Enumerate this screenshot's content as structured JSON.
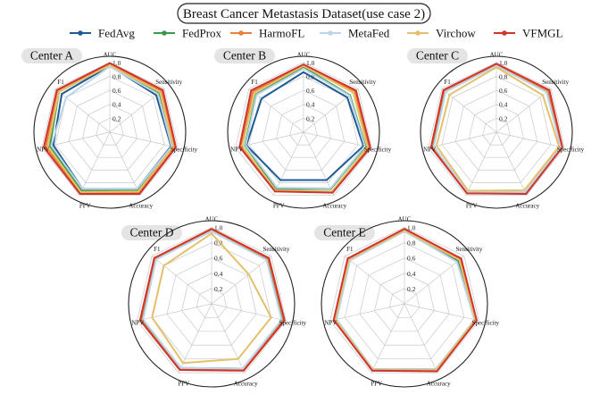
{
  "chart_data": {
    "type": "radar",
    "title": "Breast Cancer Metastasis Dataset(use case 2)",
    "axes": [
      "AUC",
      "Sensitivity",
      "Specificity",
      "Accuracy",
      "PPV",
      "NPV",
      "F1"
    ],
    "rlim": [
      0,
      1.0
    ],
    "radial_ticks": [
      "0.2",
      "0.4",
      "0.6",
      "0.8",
      "1.0"
    ],
    "radial_tick_values": [
      0.2,
      0.4,
      0.6,
      0.8,
      1.0
    ],
    "grid": true,
    "legend_position": "top",
    "series_meta": [
      {
        "name": "FedAvg",
        "color": "#1f5b94"
      },
      {
        "name": "FedProx",
        "color": "#3a9a48"
      },
      {
        "name": "HarmoFL",
        "color": "#e8823a"
      },
      {
        "name": "MetaFed",
        "color": "#bcd5ea"
      },
      {
        "name": "Virchow",
        "color": "#e3c06c"
      },
      {
        "name": "VFMGL",
        "color": "#d0342c"
      }
    ],
    "charts": [
      {
        "panel_title": "Center A",
        "series": [
          {
            "name": "FedAvg",
            "values": [
              0.95,
              0.85,
              0.9,
              0.9,
              0.9,
              0.83,
              0.88
            ]
          },
          {
            "name": "FedProx",
            "values": [
              0.96,
              0.9,
              0.93,
              0.92,
              0.93,
              0.88,
              0.93
            ]
          },
          {
            "name": "HarmoFL",
            "values": [
              0.98,
              0.95,
              0.96,
              0.96,
              0.96,
              0.94,
              0.96
            ]
          },
          {
            "name": "MetaFed",
            "values": [
              0.94,
              0.88,
              0.91,
              0.9,
              0.9,
              0.86,
              0.8
            ]
          },
          {
            "name": "Virchow",
            "values": [
              0.96,
              0.92,
              0.93,
              0.94,
              0.95,
              0.91,
              0.93
            ]
          },
          {
            "name": "VFMGL",
            "values": [
              0.99,
              0.97,
              0.97,
              0.98,
              0.98,
              0.97,
              0.97
            ]
          }
        ]
      },
      {
        "panel_title": "Center B",
        "series": [
          {
            "name": "FedAvg",
            "values": [
              0.86,
              0.8,
              0.88,
              0.76,
              0.76,
              0.84,
              0.77
            ]
          },
          {
            "name": "FedProx",
            "values": [
              0.93,
              0.85,
              0.91,
              0.9,
              0.9,
              0.86,
              0.87
            ]
          },
          {
            "name": "HarmoFL",
            "values": [
              0.96,
              0.94,
              0.96,
              0.95,
              0.93,
              0.92,
              0.93
            ]
          },
          {
            "name": "MetaFed",
            "values": [
              0.91,
              0.84,
              0.9,
              0.89,
              0.88,
              0.85,
              0.86
            ]
          },
          {
            "name": "Virchow",
            "values": [
              0.95,
              0.91,
              0.94,
              0.94,
              0.92,
              0.9,
              0.9
            ]
          },
          {
            "name": "VFMGL",
            "values": [
              0.97,
              0.96,
              0.98,
              0.96,
              0.94,
              0.94,
              0.96
            ]
          }
        ]
      },
      {
        "panel_title": "Center C",
        "series": [
          {
            "name": "FedAvg",
            "values": [
              0.96,
              0.93,
              0.95,
              0.96,
              0.96,
              0.93,
              0.94
            ]
          },
          {
            "name": "FedProx",
            "values": [
              0.96,
              0.93,
              0.95,
              0.96,
              0.96,
              0.93,
              0.94
            ]
          },
          {
            "name": "HarmoFL",
            "values": [
              0.97,
              0.95,
              0.96,
              0.97,
              0.97,
              0.95,
              0.96
            ]
          },
          {
            "name": "MetaFed",
            "values": [
              0.95,
              0.92,
              0.94,
              0.95,
              0.95,
              0.92,
              0.93
            ]
          },
          {
            "name": "Virchow",
            "values": [
              0.93,
              0.85,
              0.92,
              0.92,
              0.93,
              0.88,
              0.86
            ]
          },
          {
            "name": "VFMGL",
            "values": [
              0.98,
              0.97,
              0.97,
              0.98,
              0.97,
              0.96,
              0.97
            ]
          }
        ]
      },
      {
        "panel_title": "Center D",
        "series": [
          {
            "name": "FedAvg",
            "values": [
              0.95,
              0.93,
              0.95,
              0.94,
              0.93,
              0.93,
              0.94
            ]
          },
          {
            "name": "FedProx",
            "values": [
              0.96,
              0.93,
              0.95,
              0.95,
              0.94,
              0.93,
              0.94
            ]
          },
          {
            "name": "HarmoFL",
            "values": [
              0.97,
              0.95,
              0.97,
              0.96,
              0.95,
              0.95,
              0.95
            ]
          },
          {
            "name": "MetaFed",
            "values": [
              0.95,
              0.92,
              0.94,
              0.94,
              0.93,
              0.92,
              0.93
            ]
          },
          {
            "name": "Virchow",
            "values": [
              0.92,
              0.62,
              0.8,
              0.8,
              0.86,
              0.8,
              0.8
            ]
          },
          {
            "name": "VFMGL",
            "values": [
              0.98,
              0.96,
              0.98,
              0.97,
              0.96,
              0.96,
              0.96
            ]
          }
        ]
      },
      {
        "panel_title": "Center E",
        "series": [
          {
            "name": "FedAvg",
            "values": [
              0.95,
              0.9,
              0.95,
              0.95,
              0.95,
              0.92,
              0.92
            ]
          },
          {
            "name": "FedProx",
            "values": [
              0.96,
              0.91,
              0.95,
              0.96,
              0.96,
              0.92,
              0.93
            ]
          },
          {
            "name": "HarmoFL",
            "values": [
              0.97,
              0.93,
              0.96,
              0.97,
              0.97,
              0.94,
              0.94
            ]
          },
          {
            "name": "MetaFed",
            "values": [
              0.95,
              0.88,
              0.94,
              0.95,
              0.95,
              0.91,
              0.91
            ]
          },
          {
            "name": "Virchow",
            "values": [
              0.96,
              0.92,
              0.95,
              0.96,
              0.96,
              0.93,
              0.93
            ]
          },
          {
            "name": "VFMGL",
            "values": [
              0.98,
              0.95,
              0.97,
              0.98,
              0.97,
              0.95,
              0.95
            ]
          }
        ]
      }
    ]
  }
}
